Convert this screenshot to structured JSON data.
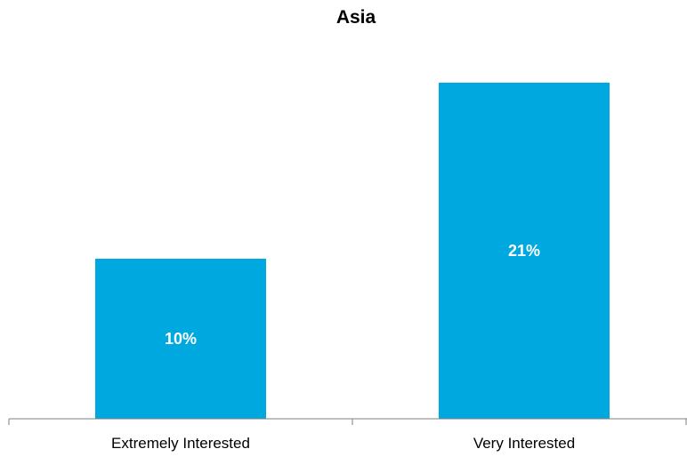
{
  "chart_data": {
    "type": "bar",
    "title": "Asia",
    "categories": [
      "Extremely Interested",
      "Very Interested"
    ],
    "values": [
      10,
      21
    ],
    "data_labels": [
      "10%",
      "21%"
    ],
    "xlabel": "",
    "ylabel": "",
    "ylim": [
      0,
      22.5
    ],
    "unit": "%",
    "grid": false,
    "legend": "none",
    "colors": {
      "bar": "#00a8e0",
      "axis": "#7f7f7f",
      "label": "#ffffff"
    }
  }
}
